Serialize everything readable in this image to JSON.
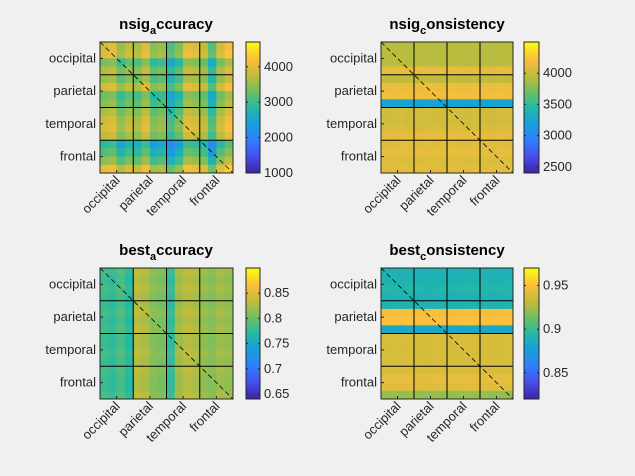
{
  "chart_data": [
    {
      "type": "heatmap",
      "title": "nsig_accuracy",
      "title_main": "nsig",
      "title_sub": "a",
      "title_rest": "ccuracy",
      "categories": [
        "occipital",
        "parietal",
        "temporal",
        "frontal"
      ],
      "block_size": 4,
      "colorbar": {
        "range": [
          1000,
          4700
        ],
        "ticks": [
          "4000",
          "3000",
          "2000",
          "1000"
        ],
        "tick_values": [
          4000,
          3000,
          2000,
          1000
        ]
      },
      "row_values": [
        4000,
        4200,
        2900,
        3600,
        3300,
        4000,
        2800,
        3100,
        3500,
        3900,
        4100,
        3700,
        2000,
        2500,
        3200,
        4300
      ],
      "col_values": [
        3800,
        4000,
        3100,
        3600,
        3300,
        4000,
        2900,
        3100,
        2200,
        2800,
        4100,
        3900,
        3600,
        2300,
        3800,
        4400
      ],
      "diagonal": true
    },
    {
      "type": "heatmap",
      "title": "nsig_consistency",
      "title_main": "nsig",
      "title_sub": "c",
      "title_rest": "onsistency",
      "categories": [
        "occipital",
        "parietal",
        "temporal",
        "frontal"
      ],
      "block_size": 4,
      "colorbar": {
        "range": [
          2400,
          4500
        ],
        "ticks": [
          "4000",
          "3500",
          "3000",
          "2500"
        ],
        "tick_values": [
          4000,
          3500,
          3000,
          2500
        ]
      },
      "row_values": [
        3900,
        3900,
        3900,
        4300,
        3950,
        4350,
        4400,
        2450,
        4100,
        4100,
        4150,
        4300,
        4250,
        4300,
        4200,
        4250
      ],
      "col_values": [
        4000,
        4000,
        4020,
        3980,
        3990,
        4010,
        4000,
        3990,
        4020,
        4000,
        3990,
        4010,
        4000,
        3980,
        4020,
        4000
      ],
      "diagonal": true
    },
    {
      "type": "heatmap",
      "title": "best_accuracy",
      "title_main": "best",
      "title_sub": "a",
      "title_rest": "ccuracy",
      "categories": [
        "occipital",
        "parietal",
        "temporal",
        "frontal"
      ],
      "block_size": 4,
      "colorbar": {
        "range": [
          0.64,
          0.9
        ],
        "ticks": [
          "0.85",
          "0.8",
          "0.75",
          "0.7",
          "0.65"
        ],
        "tick_values": [
          0.85,
          0.8,
          0.75,
          0.7,
          0.65
        ]
      },
      "row_values": [
        0.79,
        0.78,
        0.79,
        0.78,
        0.78,
        0.79,
        0.78,
        0.79,
        0.78,
        0.78,
        0.79,
        0.78,
        0.79,
        0.78,
        0.78,
        0.79
      ],
      "col_values": [
        0.78,
        0.77,
        0.79,
        0.76,
        0.88,
        0.87,
        0.84,
        0.83,
        0.77,
        0.86,
        0.88,
        0.87,
        0.85,
        0.84,
        0.86,
        0.85
      ],
      "diagonal": true
    },
    {
      "type": "heatmap",
      "title": "best_consistency",
      "title_main": "best",
      "title_sub": "c",
      "title_rest": "onsistency",
      "categories": [
        "occipital",
        "parietal",
        "temporal",
        "frontal"
      ],
      "block_size": 4,
      "colorbar": {
        "range": [
          0.82,
          0.97
        ],
        "ticks": [
          "0.95",
          "0.9",
          "0.85"
        ],
        "tick_values": [
          0.95,
          0.9,
          0.85
        ]
      },
      "row_values": [
        0.84,
        0.84,
        0.845,
        0.84,
        0.84,
        0.96,
        0.965,
        0.825,
        0.94,
        0.94,
        0.94,
        0.94,
        0.94,
        0.95,
        0.945,
        0.905
      ],
      "col_values": [
        0.94,
        0.941,
        0.939,
        0.942,
        0.94,
        0.938,
        0.941,
        0.94,
        0.939,
        0.94,
        0.942,
        0.94,
        0.941,
        0.939,
        0.94,
        0.941
      ],
      "diagonal": true
    }
  ]
}
